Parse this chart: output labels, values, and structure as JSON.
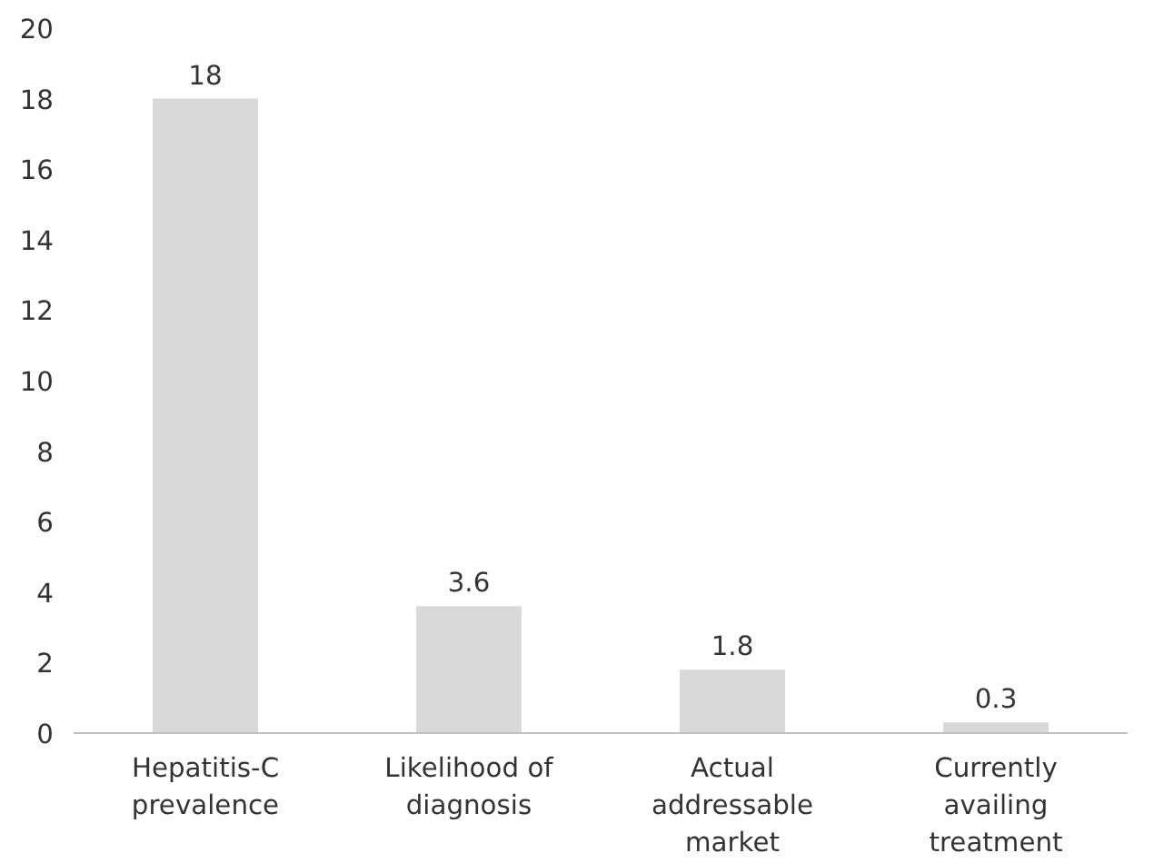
{
  "chart_data": {
    "type": "bar",
    "categories": [
      "Hepatitis-C prevalence",
      "Likelihood of diagnosis",
      "Actual addressable market",
      "Currently availing treatment"
    ],
    "values": [
      18,
      3.6,
      1.8,
      0.3
    ],
    "color": "#d9d9d9",
    "ylim": [
      0,
      20
    ],
    "yticks": [
      0,
      2,
      4,
      6,
      8,
      10,
      12,
      14,
      16,
      18,
      20
    ],
    "grid": false,
    "data_labels": true
  }
}
